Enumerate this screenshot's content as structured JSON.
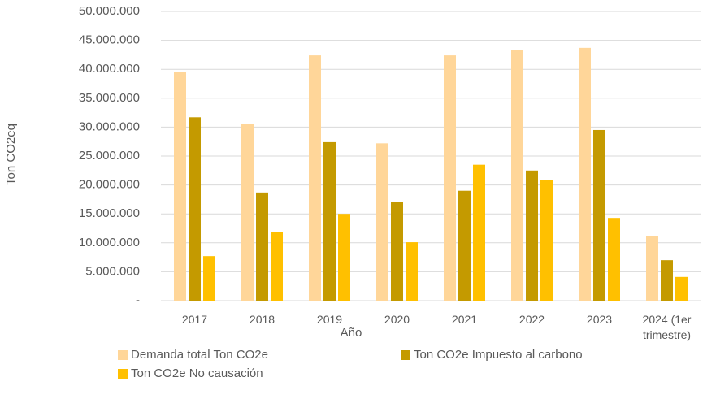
{
  "chart_data": {
    "type": "bar",
    "y_label": "Ton CO2eq",
    "x_label": "Año",
    "categories": [
      "2017",
      "2018",
      "2019",
      "2020",
      "2021",
      "2022",
      "2023",
      "2024 (1er trimestre)"
    ],
    "series": [
      {
        "name": "Demanda total Ton CO2e",
        "color": "#ffd699",
        "values": [
          39500000,
          30600000,
          42400000,
          27200000,
          42400000,
          43300000,
          43700000,
          11100000
        ]
      },
      {
        "name": "Ton CO2e Impuesto al carbono",
        "color": "#c49a00",
        "values": [
          31700000,
          18700000,
          27400000,
          17100000,
          19000000,
          22500000,
          29500000,
          7000000
        ]
      },
      {
        "name": "Ton CO2e No causación",
        "color": "#ffc000",
        "values": [
          7700000,
          11900000,
          15000000,
          10100000,
          23500000,
          20800000,
          14300000,
          4100000
        ]
      }
    ],
    "ylim": [
      0,
      50000000
    ],
    "yticks": [
      {
        "value": 0,
        "label": "-"
      },
      {
        "value": 5000000,
        "label": "5.000.000"
      },
      {
        "value": 10000000,
        "label": "10.000.000"
      },
      {
        "value": 15000000,
        "label": "15.000.000"
      },
      {
        "value": 20000000,
        "label": "20.000.000"
      },
      {
        "value": 25000000,
        "label": "25.000.000"
      },
      {
        "value": 30000000,
        "label": "30.000.000"
      },
      {
        "value": 35000000,
        "label": "35.000.000"
      },
      {
        "value": 40000000,
        "label": "40.000.000"
      },
      {
        "value": 45000000,
        "label": "45.000.000"
      },
      {
        "value": 50000000,
        "label": "50.000.000"
      }
    ],
    "grid": true,
    "legend": "bottom"
  }
}
